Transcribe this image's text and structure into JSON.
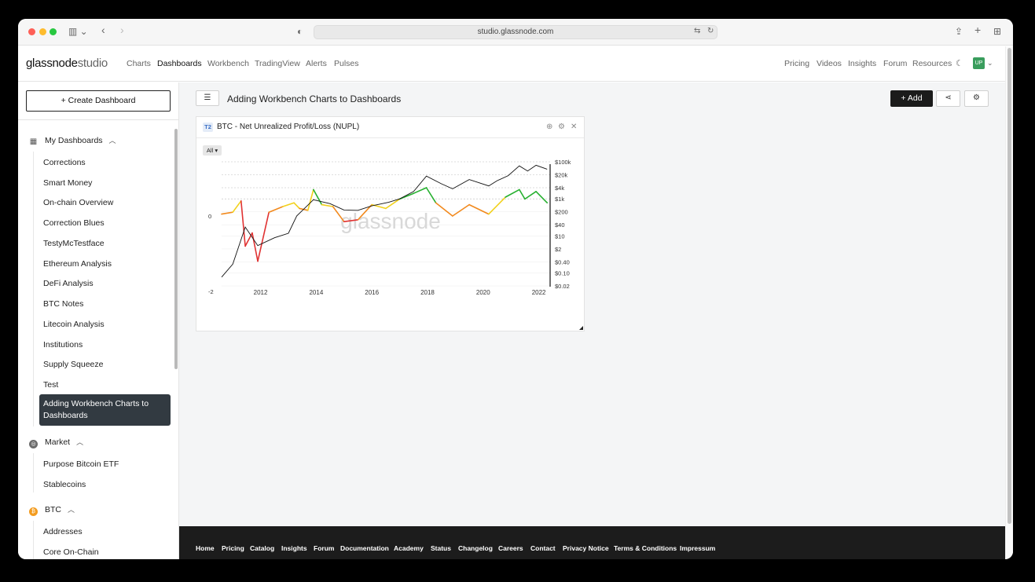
{
  "browser": {
    "url": "studio.glassnode.com"
  },
  "nav": {
    "logo_main": "glassnode",
    "logo_sub": "studio",
    "left": [
      "Charts",
      "Dashboards",
      "Workbench",
      "TradingView",
      "Alerts",
      "Pulses"
    ],
    "right": [
      "Pricing",
      "Videos",
      "Insights",
      "Forum",
      "Resources"
    ],
    "avatar": "UP"
  },
  "sidebar": {
    "create_label": "+  Create Dashboard",
    "groups": [
      {
        "label": "My Dashboards",
        "icon": "dashboard-icon"
      },
      {
        "label": "Market",
        "icon": "market-icon"
      },
      {
        "label": "BTC",
        "icon": "bitcoin-icon"
      }
    ],
    "my_dashboards": [
      "Corrections",
      "Smart Money",
      "On-chain Overview",
      "Correction Blues",
      "TestyMcTestface",
      "Ethereum Analysis",
      "DeFi Analysis",
      "BTC Notes",
      "Litecoin Analysis",
      "Institutions",
      "Supply Squeeze",
      "Test"
    ],
    "active_item": "Adding Workbench Charts to Dashboards",
    "market": [
      "Purpose Bitcoin ETF",
      "Stablecoins"
    ],
    "btc": [
      "Addresses",
      "Core On-Chain"
    ]
  },
  "main": {
    "dashboard_title": "Adding Workbench Charts to Dashboards",
    "add_label": "+  Add"
  },
  "card": {
    "tier": "T2",
    "title": "BTC - Net Unrealized Profit/Loss (NUPL)",
    "range_button": "All ▾",
    "watermark": "glassnode"
  },
  "chart_data": {
    "type": "line",
    "x_ticks": [
      "2012",
      "2014",
      "2016",
      "2018",
      "2020",
      "2022"
    ],
    "y_left_ticks": [
      "0",
      "-2"
    ],
    "y_right_ticks": [
      "$100k",
      "$20k",
      "$4k",
      "$1k",
      "$200",
      "$40",
      "$10",
      "$2",
      "$0.40",
      "$0.10",
      "$0.02"
    ],
    "series": [
      {
        "x": [
          2010.6,
          2011.0,
          2011.3,
          2011.45,
          2011.7,
          2011.9,
          2012.3,
          2012.8,
          2013.2,
          2013.4,
          2013.7,
          2013.9,
          2014.2,
          2014.6,
          2015.0,
          2015.5,
          2016.0,
          2016.5,
          2017.0,
          2017.5,
          2017.96,
          2018.3,
          2018.9,
          2019.5,
          2020.2,
          2020.8,
          2021.3,
          2021.5,
          2021.9,
          2022.3
        ],
        "values": [
          0.05,
          0.1,
          0.4,
          -0.8,
          -0.45,
          -1.2,
          0.1,
          0.25,
          0.35,
          0.2,
          0.15,
          0.7,
          0.3,
          0.25,
          -0.15,
          -0.1,
          0.3,
          0.2,
          0.45,
          0.6,
          0.75,
          0.35,
          0.0,
          0.3,
          0.05,
          0.5,
          0.7,
          0.45,
          0.65,
          0.35
        ]
      },
      {
        "x": [
          2010.6,
          2011.0,
          2011.45,
          2011.9,
          2012.5,
          2013.0,
          2013.3,
          2013.9,
          2014.5,
          2015.0,
          2015.5,
          2016.0,
          2016.6,
          2017.0,
          2017.5,
          2017.96,
          2018.5,
          2018.9,
          2019.5,
          2020.2,
          2020.5,
          2020.9,
          2021.3,
          2021.6,
          2021.9,
          2022.3
        ],
        "values": [
          0.06,
          0.3,
          30,
          3,
          8,
          14,
          120,
          900,
          550,
          250,
          240,
          420,
          650,
          1000,
          2500,
          17000,
          6500,
          3500,
          11000,
          5000,
          9500,
          18000,
          60000,
          32000,
          65000,
          40000
        ]
      }
    ]
  }
}
